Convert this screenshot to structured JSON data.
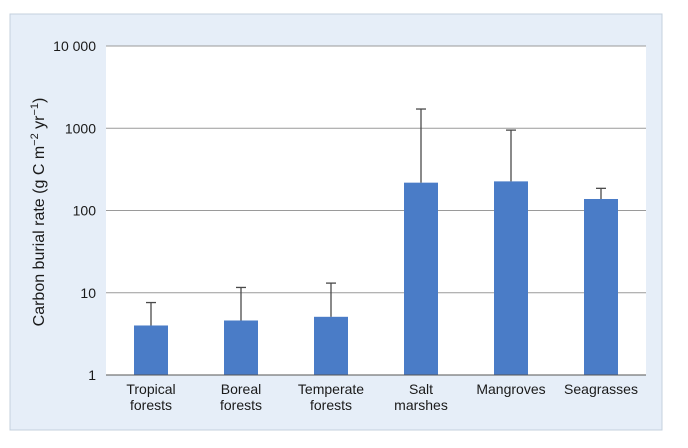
{
  "colors": {
    "panel_background": "#e6eef8",
    "plot_background": "#ffffff",
    "bar_fill": "#4a7cc7",
    "grid_line": "#9a9a9a",
    "error_bar": "#4a4a4a"
  },
  "chart_data": {
    "type": "bar",
    "scale": "log",
    "title": "",
    "xlabel": "",
    "ylabel": "Carbon burial rate (g C m-2 yr-1)",
    "ylabel_parts": {
      "prefix": "Carbon burial rate (g C m",
      "exp1": "−2",
      "mid": " yr",
      "exp2": "−1",
      "suffix": ")"
    },
    "ylim": [
      1,
      10000
    ],
    "yticks": [
      1,
      10,
      100,
      1000,
      10000
    ],
    "ytick_labels": [
      "1",
      "10",
      "100",
      "1000",
      "10 000"
    ],
    "grid": "horizontal",
    "categories": [
      [
        "Tropical",
        "forests"
      ],
      [
        "Boreal",
        "forests"
      ],
      [
        "Temperate",
        "forests"
      ],
      [
        "Salt",
        "marshes"
      ],
      [
        "Mangroves"
      ],
      [
        "Seagrasses"
      ]
    ],
    "values": [
      4.0,
      4.6,
      5.1,
      218,
      226,
      138
    ],
    "error_upper": [
      7.6,
      11.6,
      13.1,
      1713,
      949,
      186
    ]
  }
}
